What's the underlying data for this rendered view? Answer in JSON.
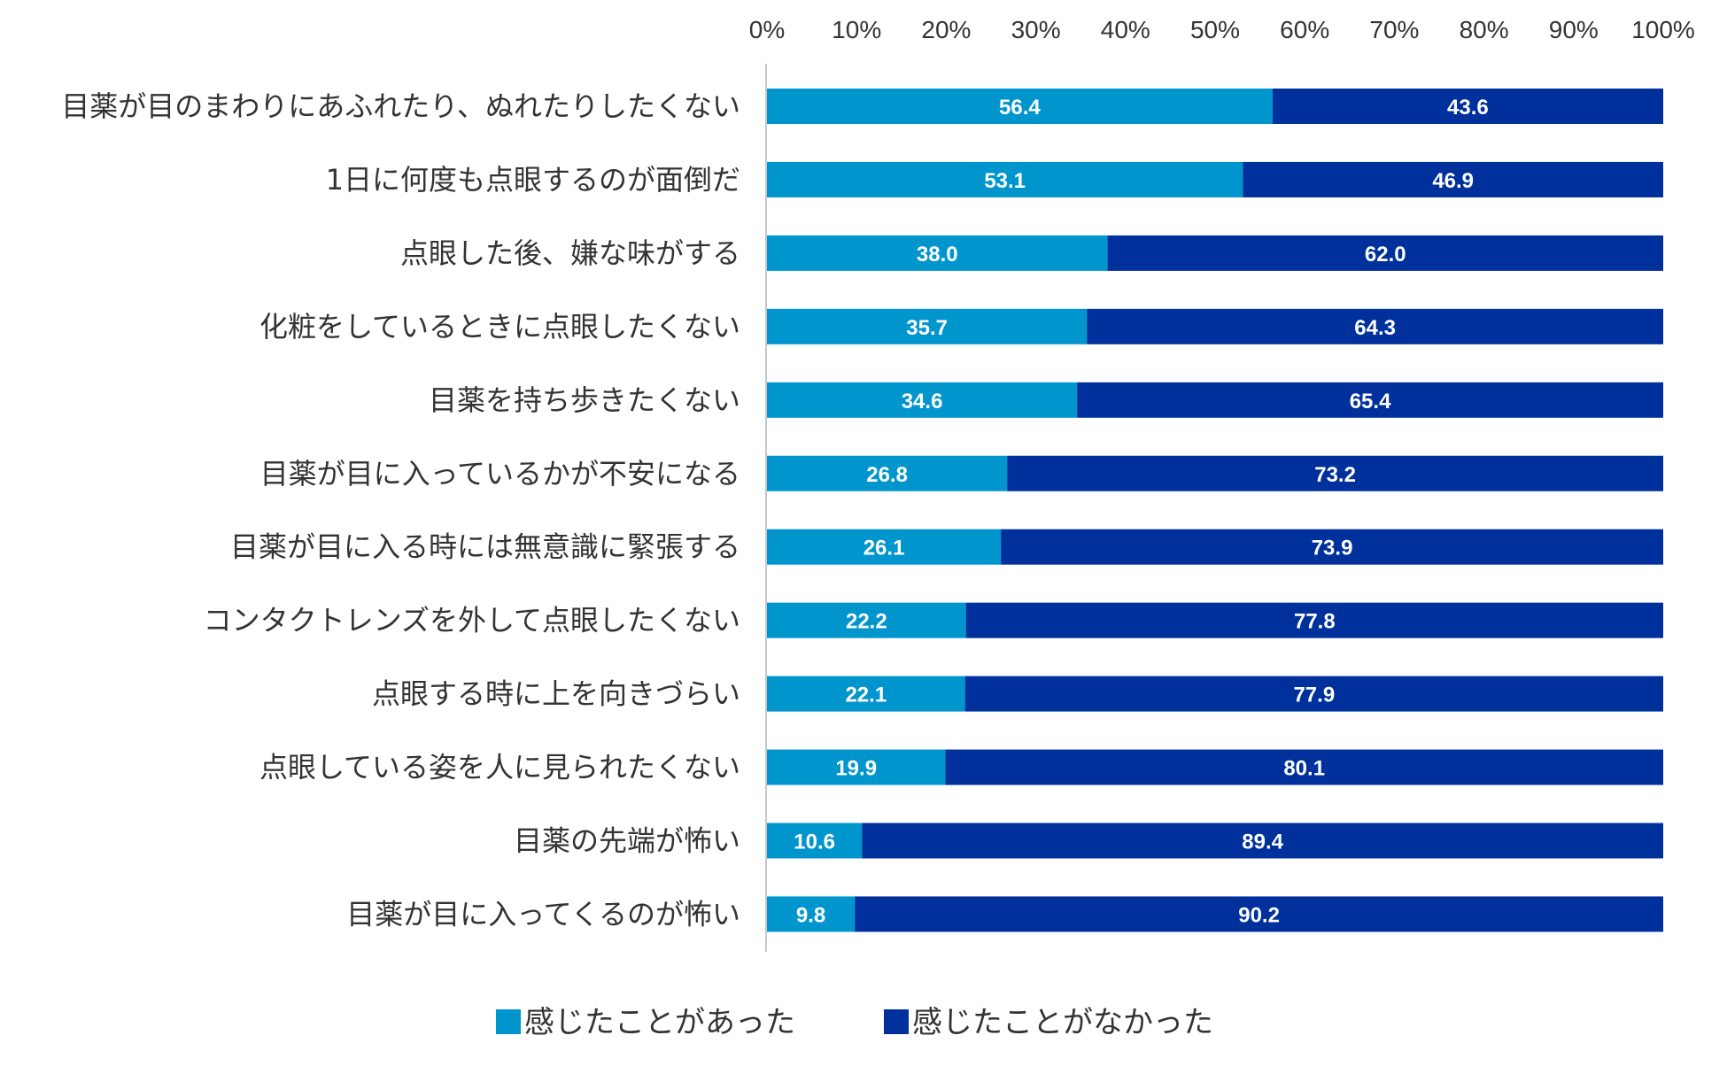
{
  "chart_data": {
    "type": "bar",
    "orientation": "horizontal",
    "stacked": true,
    "title": "",
    "xlabel": "",
    "ylabel": "",
    "xlim": [
      0,
      100
    ],
    "x_ticks": [
      "0%",
      "10%",
      "20%",
      "30%",
      "40%",
      "50%",
      "60%",
      "70%",
      "80%",
      "90%",
      "100%"
    ],
    "x_axis_position": "top",
    "grid": false,
    "legend_position": "bottom",
    "categories": [
      "目薬が目のまわりにあふれたり、ぬれたりしたくない",
      "1日に何度も点眼するのが面倒だ",
      "点眼した後、嫌な味がする",
      "化粧をしているときに点眼したくない",
      "目薬を持ち歩きたくない",
      "目薬が目に入っているかが不安になる",
      "目薬が目に入る時には無意識に緊張する",
      "コンタクトレンズを外して点眼したくない",
      "点眼する時に上を向きづらい",
      "点眼している姿を人に見られたくない",
      "目薬の先端が怖い",
      "目薬が目に入ってくるのが怖い"
    ],
    "series": [
      {
        "name": "感じたことがあった",
        "color": "#0096cd",
        "values": [
          56.4,
          53.1,
          38.0,
          35.7,
          34.6,
          26.8,
          26.1,
          22.2,
          22.1,
          19.9,
          10.6,
          9.8
        ],
        "labels": [
          "56.4",
          "53.1",
          "38.0",
          "35.7",
          "34.6",
          "26.8",
          "26.1",
          "22.2",
          "22.1",
          "19.9",
          "10.6",
          "9.8"
        ]
      },
      {
        "name": "感じたことがなかった",
        "color": "#00309b",
        "values": [
          43.6,
          46.9,
          62.0,
          64.3,
          65.4,
          73.2,
          73.9,
          77.8,
          77.9,
          80.1,
          89.4,
          90.2
        ],
        "labels": [
          "43.6",
          "46.9",
          "62.0",
          "64.3",
          "65.4",
          "73.2",
          "73.9",
          "77.8",
          "77.9",
          "80.1",
          "89.4",
          "90.2"
        ]
      }
    ],
    "axis_color": "#c8c8c8"
  }
}
